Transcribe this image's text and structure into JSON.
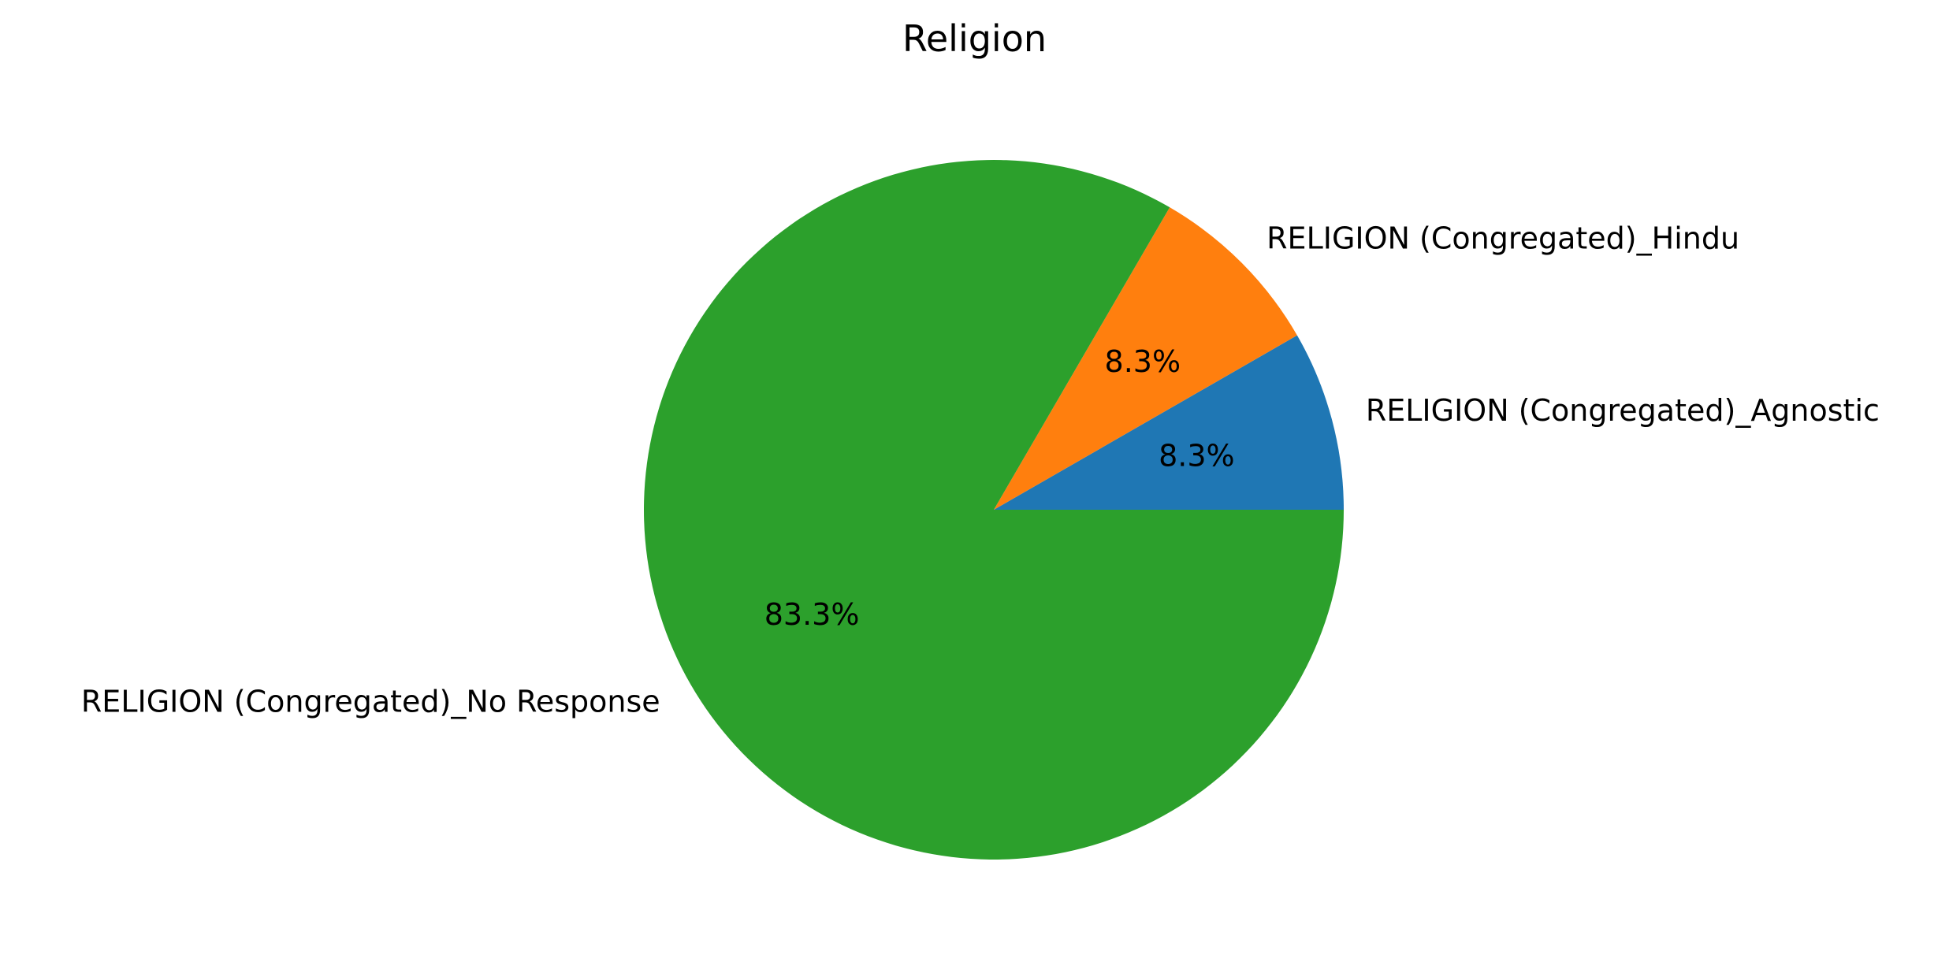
{
  "chart_data": {
    "type": "pie",
    "title": "Religion",
    "slices": [
      {
        "label": "RELIGION (Congregated)_Agnostic",
        "value": 8.3,
        "pct_label": "8.3%",
        "color": "#1f77b4"
      },
      {
        "label": "RELIGION (Congregated)_Hindu",
        "value": 8.3,
        "pct_label": "8.3%",
        "color": "#ff7f0e"
      },
      {
        "label": "RELIGION (Congregated)_No Response",
        "value": 83.3,
        "pct_label": "83.3%",
        "color": "#2ca02c"
      }
    ],
    "start_angle_deg": 0,
    "direction": "counterclockwise"
  }
}
